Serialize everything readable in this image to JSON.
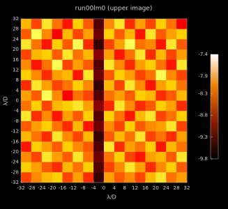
{
  "chart_data": {
    "type": "heatmap",
    "title": "run00lm0 (upper image)",
    "x_label": "λ/D",
    "y_label": "λ/D",
    "xlim": [
      -32,
      32
    ],
    "ylim": [
      -32,
      32
    ],
    "xticks": [
      -32,
      -28,
      -24,
      -20,
      -16,
      -12,
      -8,
      -4,
      0,
      4,
      8,
      12,
      16,
      20,
      24,
      28,
      32
    ],
    "yticks": [
      -32,
      -28,
      -24,
      -20,
      -16,
      -12,
      -8,
      -4,
      0,
      4,
      8,
      12,
      16,
      20,
      24,
      28,
      32
    ],
    "grid": true,
    "zlim": [
      -9.8,
      -7.4
    ],
    "zticks": [
      -7.4,
      -7.9,
      -8.3,
      -8.8,
      -9.3,
      -9.8
    ],
    "z": [
      [
        -8.1,
        -8.6,
        -7.9,
        -8.4,
        -8.8,
        -8.0,
        -8.5,
        -9.5,
        -8.3,
        -7.9,
        -8.7,
        -8.2,
        -8.6,
        -8.0,
        -8.4,
        -8.9
      ],
      [
        -8.5,
        -7.8,
        -8.3,
        -8.9,
        -8.1,
        -8.6,
        -8.2,
        -9.4,
        -8.0,
        -8.5,
        -8.1,
        -8.8,
        -7.9,
        -8.5,
        -8.2,
        -8.0
      ],
      [
        -7.9,
        -8.4,
        -8.8,
        -8.0,
        -8.5,
        -7.8,
        -8.7,
        -9.6,
        -8.6,
        -8.2,
        -7.8,
        -8.4,
        -8.3,
        -8.8,
        -7.9,
        -8.5
      ],
      [
        -8.6,
        -8.1,
        -8.0,
        -8.5,
        -7.9,
        -8.4,
        -8.1,
        -9.3,
        -8.2,
        -8.8,
        -8.4,
        -7.9,
        -8.7,
        -8.1,
        -8.6,
        -8.2
      ],
      [
        -8.3,
        -8.8,
        -8.4,
        -7.8,
        -8.6,
        -8.2,
        -8.5,
        -9.5,
        -7.9,
        -8.3,
        -8.7,
        -8.2,
        -8.0,
        -8.4,
        -8.8,
        -7.9
      ],
      [
        -8.0,
        -8.3,
        -8.7,
        -8.2,
        -8.1,
        -8.8,
        -7.9,
        -9.4,
        -8.5,
        -8.0,
        -8.2,
        -8.6,
        -8.4,
        -7.8,
        -8.3,
        -8.6
      ],
      [
        -8.7,
        -7.9,
        -8.2,
        -8.6,
        -8.4,
        -8.0,
        -8.3,
        -9.6,
        -8.1,
        -8.6,
        -7.9,
        -8.3,
        -8.8,
        -8.2,
        -8.0,
        -8.4
      ],
      [
        -8.2,
        -8.5,
        -7.8,
        -8.3,
        -8.9,
        -8.4,
        -8.6,
        -9.5,
        -8.4,
        -8.2,
        -8.5,
        -8.0,
        -8.1,
        -8.7,
        -8.5,
        -8.1
      ],
      [
        -8.4,
        -8.0,
        -8.6,
        -8.1,
        -8.0,
        -7.9,
        -8.2,
        -9.3,
        -8.7,
        -7.9,
        -8.3,
        -8.7,
        -8.5,
        -8.0,
        -8.2,
        -8.7
      ],
      [
        -7.9,
        -8.7,
        -8.3,
        -8.8,
        -8.2,
        -8.5,
        -8.0,
        -9.5,
        -8.0,
        -8.4,
        -8.8,
        -8.1,
        -7.9,
        -8.6,
        -8.4,
        -8.0
      ],
      [
        -8.5,
        -8.2,
        -8.0,
        -8.4,
        -8.7,
        -8.1,
        -8.8,
        -9.4,
        -8.3,
        -8.6,
        -8.0,
        -8.5,
        -8.3,
        -8.2,
        -7.9,
        -8.6
      ],
      [
        -8.1,
        -8.4,
        -8.7,
        -7.9,
        -8.3,
        -8.6,
        -8.1,
        -9.6,
        -8.5,
        -8.1,
        -8.4,
        -7.9,
        -8.6,
        -8.4,
        -8.7,
        -8.2
      ],
      [
        -8.8,
        -8.0,
        -8.2,
        -8.5,
        -8.0,
        -8.3,
        -8.5,
        -9.5,
        -7.9,
        -8.7,
        -8.2,
        -8.4,
        -8.0,
        -8.8,
        -8.1,
        -8.4
      ],
      [
        -8.3,
        -8.6,
        -7.9,
        -8.2,
        -8.5,
        -7.9,
        -8.4,
        -9.4,
        -8.4,
        -8.0,
        -8.6,
        -8.8,
        -8.2,
        -8.1,
        -8.5,
        -7.9
      ],
      [
        -8.0,
        -8.2,
        -8.5,
        -8.7,
        -8.1,
        -8.4,
        -8.0,
        -9.5,
        -8.6,
        -8.3,
        -7.9,
        -8.2,
        -8.7,
        -8.3,
        -8.0,
        -8.5
      ],
      [
        -8.6,
        -8.3,
        -8.1,
        -8.0,
        -8.6,
        -8.2,
        -8.7,
        -9.6,
        -8.2,
        -8.5,
        -8.3,
        -8.6,
        -8.1,
        -7.9,
        -8.4,
        -8.2
      ]
    ]
  }
}
